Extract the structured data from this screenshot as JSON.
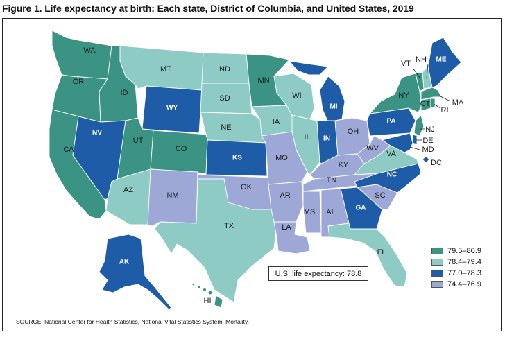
{
  "title": "Figure 1. Life expectancy at birth: Each state, District of Columbia, and United States, 2019",
  "colors": {
    "c1": "#3b9483",
    "c2": "#8ecbc4",
    "c3": "#1f5ca8",
    "c4": "#9da8d6"
  },
  "legend": [
    {
      "range": "79.5–80.9",
      "color": "#3b9483"
    },
    {
      "range": "78.4–79.4",
      "color": "#8ecbc4"
    },
    {
      "range": "77.0–78.3",
      "color": "#1f5ca8"
    },
    {
      "range": "74.4–76.9",
      "color": "#9da8d6"
    }
  ],
  "us_life_expectancy": "U.S. life expectancy: 78.8",
  "source": "SOURCE: National Center for Health Statistics, National Vital Statistics System, Mortality.",
  "states": {
    "WA": "WA",
    "OR": "OR",
    "CA": "CA",
    "ID": "ID",
    "NV": "NV",
    "MT": "MT",
    "WY": "WY",
    "UT": "UT",
    "AZ": "AZ",
    "CO": "CO",
    "NM": "NM",
    "ND": "ND",
    "SD": "SD",
    "NE": "NE",
    "KS": "KS",
    "OK": "OK",
    "TX": "TX",
    "MN": "MN",
    "IA": "IA",
    "MO": "MO",
    "AR": "AR",
    "LA": "LA",
    "WI": "WI",
    "IL": "IL",
    "MI": "MI",
    "IN": "IN",
    "OH": "OH",
    "KY": "KY",
    "TN": "TN",
    "MS": "MS",
    "AL": "AL",
    "GA": "GA",
    "FL": "FL",
    "SC": "SC",
    "NC": "NC",
    "VA": "VA",
    "WV": "WV",
    "PA": "PA",
    "NY": "NY",
    "VT": "VT",
    "NH": "NH",
    "ME": "ME",
    "MA": "MA",
    "RI": "RI",
    "CT": "CT",
    "NJ": "NJ",
    "DE": "DE",
    "MD": "MD",
    "DC": "DC",
    "AK": "AK",
    "HI": "HI"
  }
}
